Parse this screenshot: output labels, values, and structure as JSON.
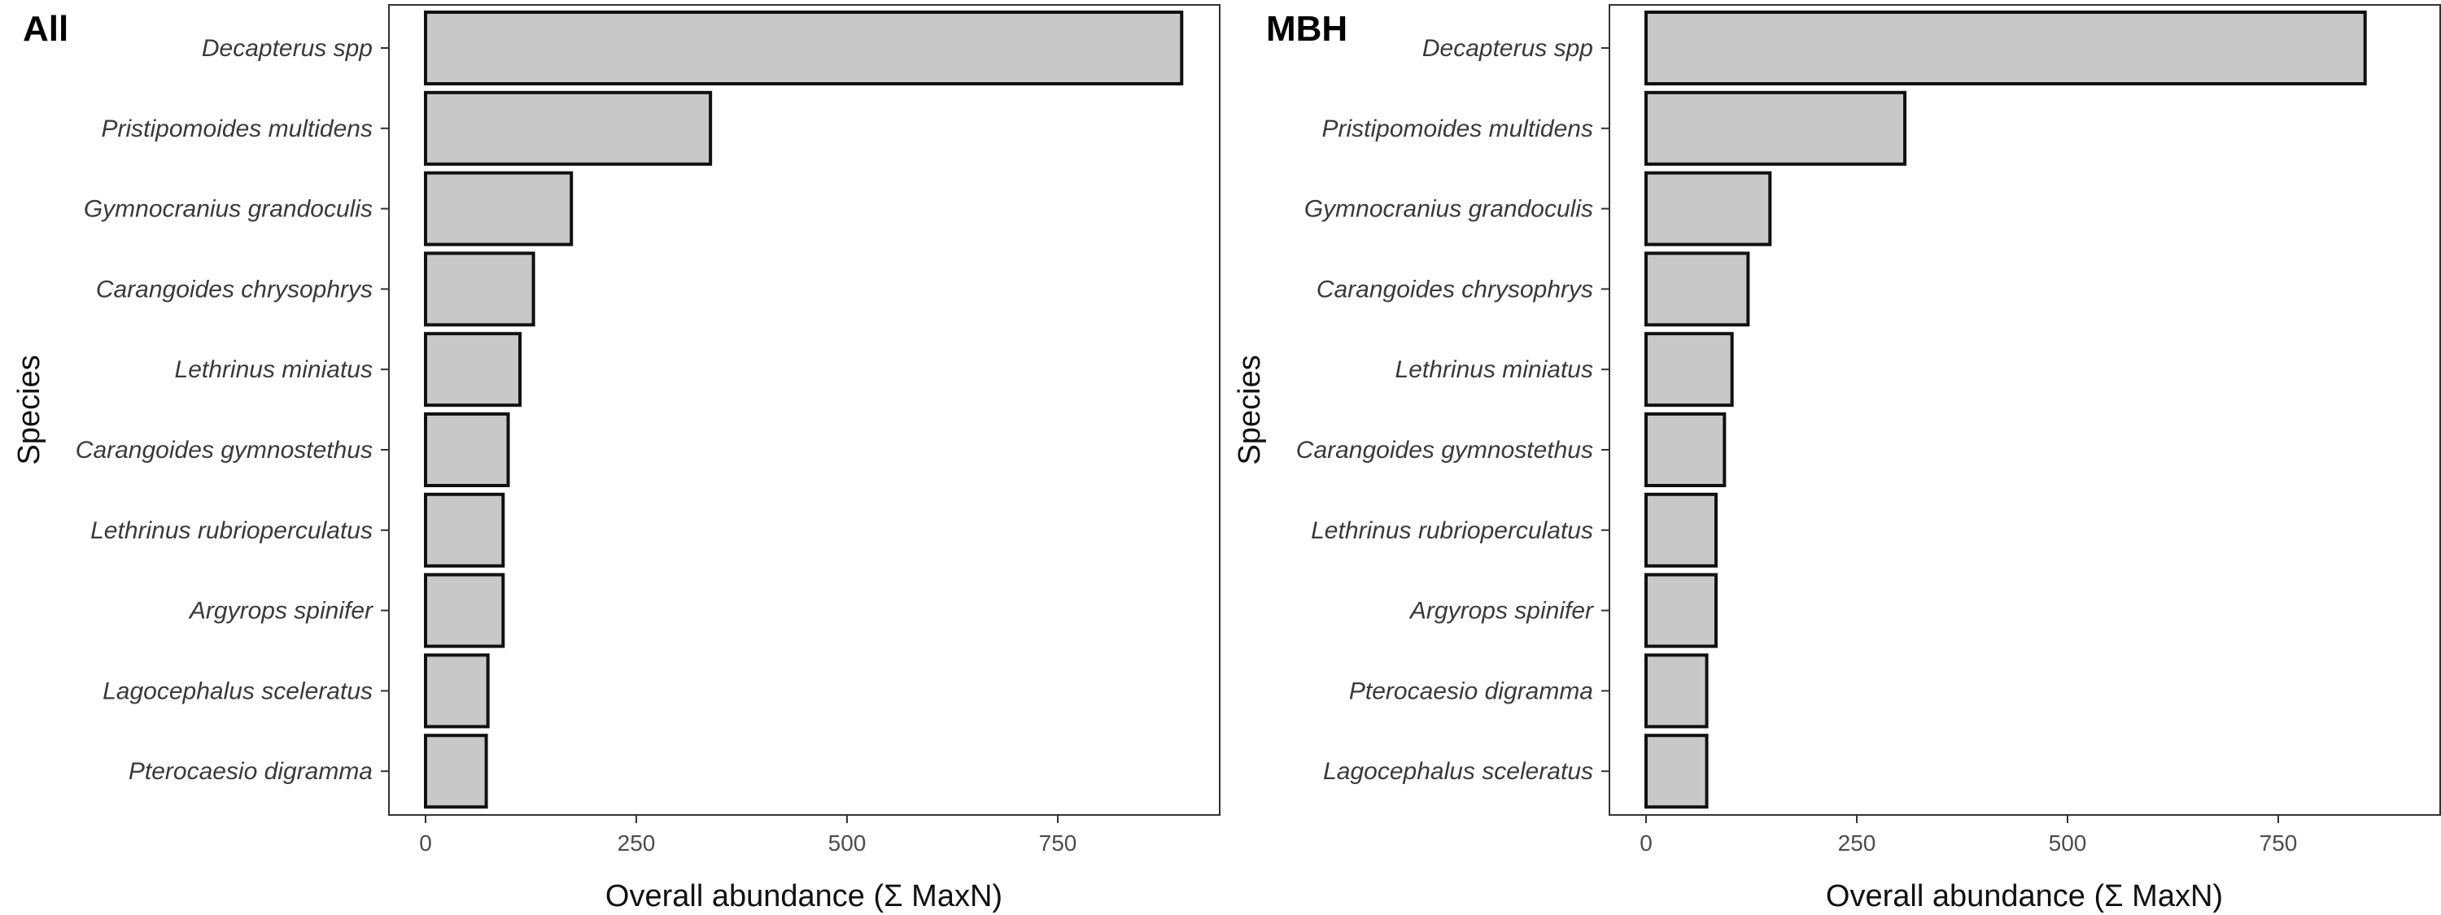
{
  "chart_data": [
    {
      "type": "bar",
      "orientation": "horizontal",
      "title": "All",
      "xlabel": "Overall abundance (Σ MaxN)",
      "ylabel": "Species",
      "xlim": [
        0,
        950
      ],
      "xticks": [
        0,
        250,
        500,
        750
      ],
      "grid": false,
      "categories": [
        "Decapterus spp",
        "Pristipomoides multidens",
        "Gymnocranius grandoculis",
        "Carangoides chrysophrys",
        "Lethrinus miniatus",
        "Carangoides gymnostethus",
        "Lethrinus rubrioperculatus",
        "Argyrops spinifer",
        "Lagocephalus sceleratus",
        "Pterocaesio digramma"
      ],
      "values": [
        897,
        338,
        173,
        128,
        112,
        98,
        92,
        92,
        74,
        72
      ]
    },
    {
      "type": "bar",
      "orientation": "horizontal",
      "title": "MBH",
      "xlabel": "Overall abundance (Σ MaxN)",
      "ylabel": "Species",
      "xlim": [
        0,
        950
      ],
      "xticks": [
        0,
        250,
        500,
        750
      ],
      "grid": false,
      "categories": [
        "Decapterus spp",
        "Pristipomoides multidens",
        "Gymnocranius grandoculis",
        "Carangoides chrysophrys",
        "Lethrinus miniatus",
        "Carangoides gymnostethus",
        "Lethrinus rubrioperculatus",
        "Argyrops spinifer",
        "Pterocaesio digramma",
        "Lagocephalus sceleratus"
      ],
      "values": [
        853,
        307,
        147,
        121,
        102,
        93,
        83,
        83,
        72,
        72
      ]
    }
  ],
  "colors": {
    "bar_fill": "#c8c8c8",
    "bar_stroke": "#111111",
    "frame": "#333333"
  }
}
